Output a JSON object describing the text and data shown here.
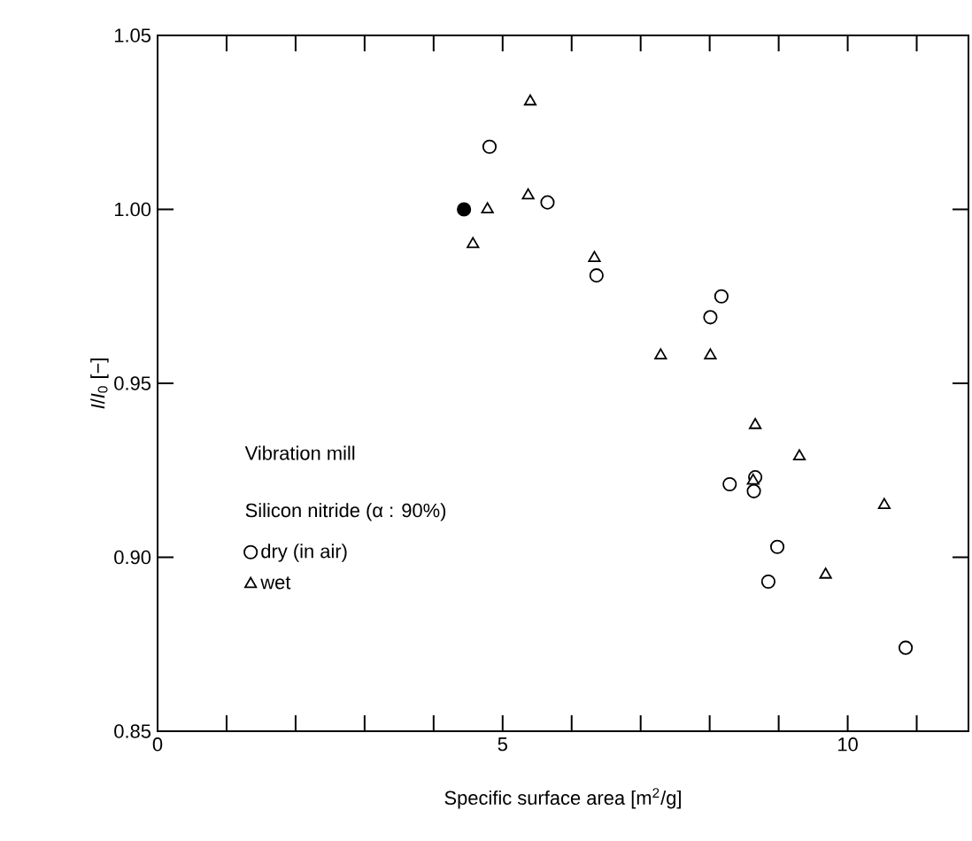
{
  "chart_data": {
    "type": "scatter",
    "xlabel": "Specific surface area [m$^{2}$/g]",
    "ylabel": "*I*/*I*$_{0}$ [−]",
    "xlim": [
      0,
      11.75
    ],
    "ylim": [
      0.85,
      1.05
    ],
    "xticks": [
      0,
      {
        "value": 1,
        "label": null
      },
      {
        "value": 2,
        "label": null
      },
      {
        "value": 3,
        "label": null
      },
      {
        "value": 4,
        "label": null
      },
      5,
      {
        "value": 6,
        "label": null
      },
      {
        "value": 7,
        "label": null
      },
      {
        "value": 8,
        "label": null
      },
      {
        "value": 9,
        "label": null
      },
      10,
      {
        "value": 11,
        "label": null
      }
    ],
    "yticks": [
      {
        "value": 0.85,
        "label": "0.85"
      },
      {
        "value": 0.9,
        "label": "0.90"
      },
      0.95,
      {
        "value": 1.0,
        "label": "1.00"
      },
      1.05
    ],
    "grid": false,
    "legend": "left",
    "annotations": [
      "Vibration mill",
      "Silicon nitride (α : 90%)"
    ],
    "series": [
      {
        "name": "dry  (in air)",
        "color": "#000000",
        "marker": "circle",
        "x": [
          4.81,
          5.65,
          6.36,
          8.01,
          8.17,
          8.29,
          8.66,
          8.64,
          8.98,
          8.85,
          10.84
        ],
        "values": [
          1.018,
          1.002,
          0.981,
          0.969,
          0.975,
          0.921,
          0.923,
          0.919,
          0.903,
          0.893,
          0.874
        ]
      },
      {
        "name": "wet",
        "color": "#000000",
        "marker": "triangle",
        "x": [
          5.4,
          4.78,
          4.57,
          5.37,
          6.33,
          7.29,
          8.01,
          8.66,
          8.63,
          9.3,
          10.53,
          9.68
        ],
        "values": [
          1.031,
          1.0,
          0.99,
          1.004,
          0.986,
          0.958,
          0.958,
          0.938,
          0.922,
          0.929,
          0.915,
          0.895
        ]
      },
      {
        "color": "#000000",
        "marker": "circle",
        "x": [
          4.44
        ],
        "values": [
          1.0
        ]
      }
    ]
  }
}
